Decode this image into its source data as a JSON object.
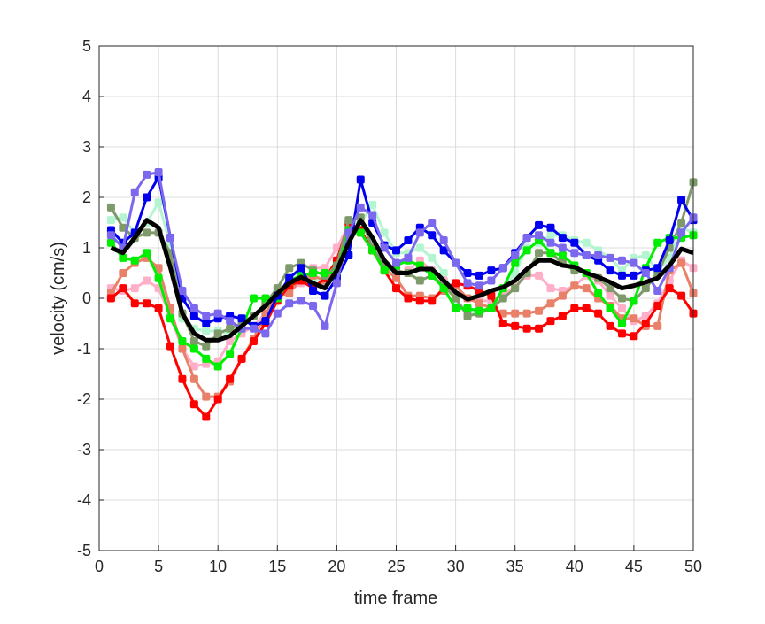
{
  "chart_data": {
    "type": "line",
    "title": "",
    "xlabel": "time frame",
    "ylabel": "velocity (cm/s)",
    "xlim": [
      0,
      50
    ],
    "ylim": [
      -5,
      5
    ],
    "xticks": [
      0,
      5,
      10,
      15,
      20,
      25,
      30,
      35,
      40,
      45,
      50
    ],
    "yticks": [
      -5,
      -4,
      -3,
      -2,
      -1,
      0,
      1,
      2,
      3,
      4,
      5
    ],
    "grid": true,
    "legend": "none",
    "x": [
      1,
      2,
      3,
      4,
      5,
      6,
      7,
      8,
      9,
      10,
      11,
      12,
      13,
      14,
      15,
      16,
      17,
      18,
      19,
      20,
      21,
      22,
      23,
      24,
      25,
      26,
      27,
      28,
      29,
      30,
      31,
      32,
      33,
      34,
      35,
      36,
      37,
      38,
      39,
      40,
      41,
      42,
      43,
      44,
      45,
      46,
      47,
      48,
      49,
      50
    ],
    "series": [
      {
        "color": "#B3F5D1",
        "markers": true,
        "values": [
          1.55,
          1.6,
          1.3,
          1.5,
          1.9,
          1.05,
          -0.4,
          -0.6,
          -0.65,
          -0.65,
          -0.7,
          -0.5,
          -0.35,
          -0.1,
          0.1,
          0.2,
          0.4,
          0.4,
          0.3,
          0.6,
          1.5,
          1.5,
          1.85,
          1.3,
          0.9,
          0.9,
          1.0,
          0.8,
          0.5,
          -0.05,
          -0.25,
          -0.3,
          -0.2,
          0.15,
          0.5,
          1.0,
          1.1,
          1.25,
          1.25,
          1.15,
          1.1,
          0.95,
          0.8,
          0.55,
          0.8,
          0.85,
          0.55,
          0.8,
          1.4,
          1.3
        ]
      },
      {
        "color": "#FFB0C8",
        "markers": true,
        "values": [
          0.2,
          0.15,
          0.2,
          0.35,
          0.2,
          -0.35,
          -1.0,
          -1.35,
          -1.3,
          -1.25,
          -0.85,
          -0.7,
          -0.55,
          -0.3,
          0.05,
          0.15,
          0.3,
          0.6,
          0.6,
          1.0,
          1.45,
          1.3,
          0.95,
          0.55,
          0.45,
          0.55,
          0.75,
          0.55,
          0.35,
          0.05,
          0.0,
          -0.05,
          -0.05,
          0.05,
          0.25,
          0.45,
          0.45,
          0.2,
          0.15,
          0.25,
          0.45,
          0.35,
          0.05,
          -0.2,
          -0.45,
          -0.35,
          -0.1,
          0.35,
          0.75,
          0.6
        ]
      },
      {
        "color": "#E8806A",
        "markers": true,
        "values": [
          0.1,
          0.5,
          0.7,
          0.8,
          0.6,
          -0.2,
          -1.0,
          -1.6,
          -1.95,
          -1.95,
          -1.65,
          -1.2,
          -0.8,
          -0.3,
          0.05,
          0.1,
          0.4,
          0.45,
          0.35,
          0.6,
          1.4,
          1.3,
          1.0,
          0.6,
          0.4,
          0.05,
          0.05,
          0.0,
          0.15,
          0.25,
          0.0,
          -0.1,
          -0.2,
          -0.3,
          -0.3,
          -0.3,
          -0.25,
          -0.1,
          0.05,
          0.25,
          0.2,
          0.0,
          -0.15,
          -0.4,
          -0.4,
          -0.55,
          -0.55,
          0.55,
          0.7,
          0.1
        ]
      },
      {
        "color": "#FF0000",
        "markers": true,
        "values": [
          0.0,
          0.2,
          -0.1,
          -0.1,
          -0.2,
          -0.95,
          -1.6,
          -2.1,
          -2.35,
          -2.0,
          -1.6,
          -1.2,
          -0.85,
          -0.5,
          -0.05,
          0.25,
          0.35,
          0.2,
          0.4,
          0.75,
          1.5,
          1.35,
          0.95,
          0.55,
          0.2,
          0.0,
          -0.05,
          -0.05,
          0.2,
          0.3,
          0.25,
          0.15,
          0.05,
          -0.5,
          -0.55,
          -0.6,
          -0.6,
          -0.45,
          -0.35,
          -0.2,
          -0.2,
          -0.3,
          -0.55,
          -0.7,
          -0.75,
          -0.5,
          -0.15,
          0.2,
          0.05,
          -0.3
        ]
      },
      {
        "color": "#7F9A6A",
        "markers": true,
        "values": [
          1.8,
          1.4,
          1.2,
          1.3,
          1.3,
          0.9,
          -0.3,
          -0.85,
          -0.95,
          -0.7,
          -0.6,
          -0.5,
          -0.35,
          -0.1,
          0.2,
          0.6,
          0.7,
          0.55,
          0.45,
          0.65,
          1.55,
          1.6,
          1.0,
          0.65,
          0.55,
          0.5,
          0.35,
          0.45,
          0.25,
          0.0,
          -0.35,
          -0.3,
          -0.2,
          0.0,
          0.2,
          0.5,
          0.9,
          0.9,
          0.7,
          0.55,
          0.5,
          0.4,
          0.2,
          0.0,
          -0.05,
          0.2,
          0.5,
          1.0,
          1.5,
          2.3
        ]
      },
      {
        "color": "#00EE00",
        "markers": true,
        "values": [
          1.1,
          0.8,
          0.75,
          0.9,
          0.4,
          -0.4,
          -0.85,
          -1.0,
          -1.2,
          -1.35,
          -1.1,
          -0.6,
          0.0,
          0.0,
          0.0,
          0.35,
          0.45,
          0.5,
          0.5,
          0.5,
          1.35,
          1.3,
          0.95,
          0.55,
          0.65,
          0.75,
          0.65,
          0.45,
          0.2,
          -0.2,
          -0.2,
          -0.25,
          -0.2,
          0.2,
          0.7,
          0.95,
          1.15,
          0.9,
          0.85,
          0.65,
          0.5,
          0.1,
          -0.2,
          -0.5,
          -0.05,
          0.6,
          1.1,
          1.2,
          1.2,
          1.25
        ]
      },
      {
        "color": "#0000EE",
        "markers": true,
        "values": [
          1.35,
          1.1,
          1.3,
          2.0,
          2.4,
          1.2,
          0.0,
          -0.35,
          -0.5,
          -0.4,
          -0.35,
          -0.4,
          -0.55,
          -0.45,
          0.05,
          0.4,
          0.6,
          0.15,
          0.05,
          0.4,
          0.85,
          2.35,
          1.5,
          1.05,
          0.95,
          1.15,
          1.4,
          1.25,
          0.95,
          0.7,
          0.5,
          0.45,
          0.55,
          0.6,
          0.9,
          1.2,
          1.45,
          1.4,
          1.2,
          1.1,
          0.85,
          0.75,
          0.55,
          0.45,
          0.45,
          0.55,
          0.6,
          1.15,
          1.95,
          1.55
        ]
      },
      {
        "color": "#7B68EE",
        "markers": true,
        "values": [
          1.25,
          1.0,
          2.1,
          2.45,
          2.5,
          1.2,
          0.15,
          -0.2,
          -0.35,
          -0.3,
          -0.45,
          -0.6,
          -0.6,
          -0.7,
          -0.3,
          -0.1,
          -0.05,
          -0.15,
          -0.55,
          0.3,
          1.3,
          1.8,
          1.65,
          1.0,
          0.7,
          0.8,
          1.3,
          1.5,
          1.15,
          0.7,
          0.3,
          0.25,
          0.35,
          0.6,
          0.85,
          1.2,
          1.25,
          1.1,
          1.0,
          0.9,
          0.85,
          0.85,
          0.8,
          0.75,
          0.7,
          0.5,
          0.15,
          0.6,
          1.3,
          1.6
        ]
      },
      {
        "color": "#000000",
        "markers": false,
        "thick": true,
        "values": [
          1.0,
          0.9,
          1.2,
          1.55,
          1.4,
          0.6,
          -0.3,
          -0.7,
          -0.83,
          -0.83,
          -0.75,
          -0.55,
          -0.35,
          -0.15,
          0.1,
          0.3,
          0.42,
          0.3,
          0.2,
          0.55,
          1.1,
          1.55,
          1.2,
          0.75,
          0.5,
          0.5,
          0.58,
          0.58,
          0.35,
          0.12,
          -0.02,
          0.05,
          0.15,
          0.22,
          0.35,
          0.58,
          0.75,
          0.75,
          0.65,
          0.62,
          0.5,
          0.42,
          0.32,
          0.2,
          0.25,
          0.32,
          0.4,
          0.65,
          0.98,
          0.9
        ]
      }
    ]
  }
}
